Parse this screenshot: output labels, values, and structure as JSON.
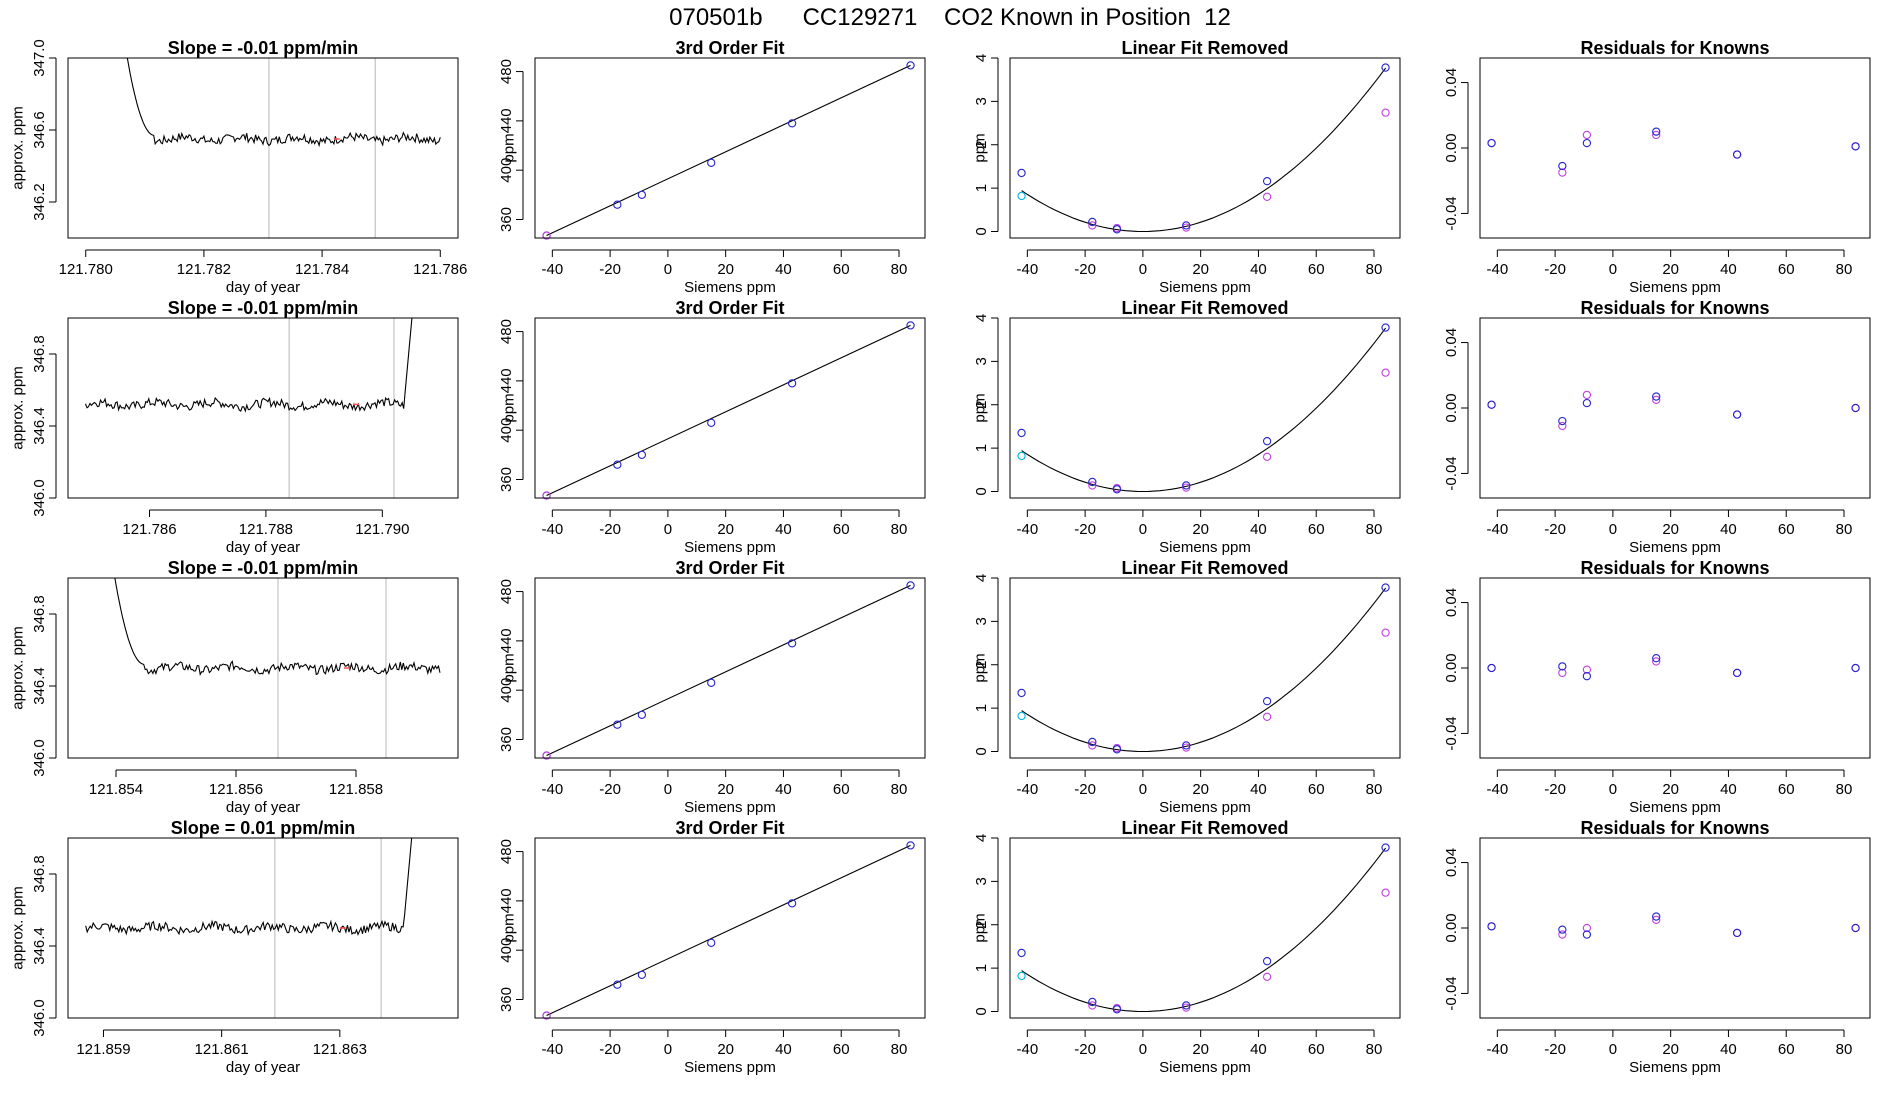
{
  "figure": {
    "title": "070501b      CC129271    CO2 Known in Position  12"
  },
  "colors": {
    "axis": "#000000",
    "trace": "#000000",
    "trace_highlight": "#ff4d4d",
    "vline": "#c8c8c8",
    "fit_line": "#000000",
    "point_blue": "#2222cc",
    "point_magenta": "#c040e0",
    "point_cyan": "#00b4e0"
  },
  "chart_data": [
    {
      "type": "line",
      "panel": "r1-trace",
      "title": "Slope =  -0.01  ppm/min",
      "xlabel": "day of year",
      "ylabel": "approx. ppm",
      "xlim": [
        121.7797,
        121.7863
      ],
      "ylim": [
        346.0,
        347.0
      ],
      "xticks": [
        "121.780",
        "121.782",
        "121.784",
        "121.786"
      ],
      "xtick_values": [
        121.78,
        121.782,
        121.784,
        121.786
      ],
      "yticks": [
        "346.2",
        "346.6",
        "347.0"
      ],
      "ytick_values": [
        346.2,
        346.6,
        347.0
      ],
      "vlines": [
        121.7831,
        121.7849
      ],
      "trace": {
        "start": 121.7805,
        "end": 121.786,
        "spike": "left",
        "level": 346.55
      }
    },
    {
      "type": "line",
      "panel": "r1-fit",
      "title": "3rd Order Fit",
      "xlabel": "Siemens ppm",
      "ylabel": "ppm",
      "xlim": [
        -46,
        89
      ],
      "ylim": [
        345,
        491
      ],
      "xticks": [
        "-40",
        "-20",
        "0",
        "20",
        "40",
        "60",
        "80"
      ],
      "xtick_values": [
        -40,
        -20,
        0,
        20,
        40,
        60,
        80
      ],
      "yticks": [
        "360",
        "400",
        "440",
        "480"
      ],
      "ytick_values": [
        360,
        400,
        440,
        480
      ],
      "points": [
        {
          "x": -42,
          "y": 347
        },
        {
          "x": -17.5,
          "y": 372
        },
        {
          "x": -9,
          "y": 380
        },
        {
          "x": 15,
          "y": 406
        },
        {
          "x": 43,
          "y": 438
        },
        {
          "x": 84,
          "y": 485
        }
      ]
    },
    {
      "type": "scatter",
      "panel": "r1-linear",
      "title": "Linear Fit Removed",
      "xlabel": "Siemens ppm",
      "ylabel": "ppm",
      "xlim": [
        -46,
        89
      ],
      "ylim": [
        -0.15,
        4.0
      ],
      "xticks": [
        "-40",
        "-20",
        "0",
        "20",
        "40",
        "60",
        "80"
      ],
      "xtick_values": [
        -40,
        -20,
        0,
        20,
        40,
        60,
        80
      ],
      "yticks": [
        "0",
        "1",
        "2",
        "3",
        "4"
      ],
      "ytick_values": [
        0,
        1,
        2,
        3,
        4
      ],
      "curve": {
        "a": 0.000534,
        "b": 0.0,
        "c": 0.0
      },
      "blue": [
        {
          "x": -42,
          "y": 1.35
        },
        {
          "x": -17.5,
          "y": 0.22
        },
        {
          "x": -9,
          "y": 0.05
        },
        {
          "x": 15,
          "y": 0.14
        },
        {
          "x": 43,
          "y": 1.16
        },
        {
          "x": 84,
          "y": 3.78
        }
      ],
      "magenta": [
        {
          "x": -17.5,
          "y": 0.14
        },
        {
          "x": -9,
          "y": 0.08
        },
        {
          "x": 15,
          "y": 0.09
        },
        {
          "x": 43,
          "y": 0.8
        },
        {
          "x": 84,
          "y": 2.74
        }
      ],
      "cyan": [
        {
          "x": -42,
          "y": 0.82
        }
      ]
    },
    {
      "type": "scatter",
      "panel": "r1-resid",
      "title": "Residuals for Knowns",
      "xlabel": "Siemens ppm",
      "ylabel": "",
      "xlim": [
        -46,
        89
      ],
      "ylim": [
        -0.055,
        0.055
      ],
      "xticks": [
        "-40",
        "-20",
        "0",
        "20",
        "40",
        "60",
        "80"
      ],
      "xtick_values": [
        -40,
        -20,
        0,
        20,
        40,
        60,
        80
      ],
      "yticks": [
        "-0.04",
        "0.00",
        "0.04"
      ],
      "ytick_values": [
        -0.04,
        0.0,
        0.04
      ],
      "blue": [
        {
          "x": -42,
          "y": 0.003
        },
        {
          "x": -17.5,
          "y": -0.011
        },
        {
          "x": -9,
          "y": 0.003
        },
        {
          "x": 15,
          "y": 0.01
        },
        {
          "x": 43,
          "y": -0.004
        },
        {
          "x": 84,
          "y": 0.001
        }
      ],
      "magenta": [
        {
          "x": -42,
          "y": 0.003
        },
        {
          "x": -17.5,
          "y": -0.015
        },
        {
          "x": -9,
          "y": 0.008
        },
        {
          "x": 15,
          "y": 0.008
        },
        {
          "x": 43,
          "y": -0.004
        },
        {
          "x": 84,
          "y": 0.001
        }
      ]
    },
    {
      "type": "line",
      "panel": "r2-trace",
      "title": "Slope =  -0.01  ppm/min",
      "xlabel": "day of year",
      "ylabel": "approx. ppm",
      "xlim": [
        121.7846,
        121.7913
      ],
      "ylim": [
        346.0,
        347.0
      ],
      "xticks": [
        "121.786",
        "121.788",
        "121.790"
      ],
      "xtick_values": [
        121.786,
        121.788,
        121.79
      ],
      "yticks": [
        "346.0",
        "346.4",
        "346.8"
      ],
      "ytick_values": [
        346.0,
        346.4,
        346.8
      ],
      "vlines": [
        121.7884,
        121.7902
      ],
      "trace": {
        "start": 121.7849,
        "end": 121.7906,
        "spike": "right",
        "level": 346.52
      }
    },
    {
      "type": "line",
      "panel": "r2-fit",
      "title": "3rd Order Fit",
      "xlabel": "Siemens ppm",
      "ylabel": "ppm",
      "xlim": [
        -46,
        89
      ],
      "ylim": [
        345,
        491
      ],
      "xticks": [
        "-40",
        "-20",
        "0",
        "20",
        "40",
        "60",
        "80"
      ],
      "xtick_values": [
        -40,
        -20,
        0,
        20,
        40,
        60,
        80
      ],
      "yticks": [
        "360",
        "400",
        "440",
        "480"
      ],
      "ytick_values": [
        360,
        400,
        440,
        480
      ],
      "points": [
        {
          "x": -42,
          "y": 347
        },
        {
          "x": -17.5,
          "y": 372
        },
        {
          "x": -9,
          "y": 380
        },
        {
          "x": 15,
          "y": 406
        },
        {
          "x": 43,
          "y": 438
        },
        {
          "x": 84,
          "y": 485
        }
      ]
    },
    {
      "type": "scatter",
      "panel": "r2-linear",
      "title": "Linear Fit Removed",
      "xlabel": "Siemens ppm",
      "ylabel": "ppm",
      "xlim": [
        -46,
        89
      ],
      "ylim": [
        -0.15,
        4.0
      ],
      "xticks": [
        "-40",
        "-20",
        "0",
        "20",
        "40",
        "60",
        "80"
      ],
      "xtick_values": [
        -40,
        -20,
        0,
        20,
        40,
        60,
        80
      ],
      "yticks": [
        "0",
        "1",
        "2",
        "3",
        "4"
      ],
      "ytick_values": [
        0,
        1,
        2,
        3,
        4
      ],
      "curve": {
        "a": 0.000534,
        "b": 0.0,
        "c": 0.0
      },
      "blue": [
        {
          "x": -42,
          "y": 1.35
        },
        {
          "x": -17.5,
          "y": 0.22
        },
        {
          "x": -9,
          "y": 0.05
        },
        {
          "x": 15,
          "y": 0.14
        },
        {
          "x": 43,
          "y": 1.16
        },
        {
          "x": 84,
          "y": 3.78
        }
      ],
      "magenta": [
        {
          "x": -17.5,
          "y": 0.14
        },
        {
          "x": -9,
          "y": 0.08
        },
        {
          "x": 15,
          "y": 0.09
        },
        {
          "x": 43,
          "y": 0.8
        },
        {
          "x": 84,
          "y": 2.74
        }
      ],
      "cyan": [
        {
          "x": -42,
          "y": 0.82
        }
      ]
    },
    {
      "type": "scatter",
      "panel": "r2-resid",
      "title": "Residuals for Knowns",
      "xlabel": "Siemens ppm",
      "ylabel": "",
      "xlim": [
        -46,
        89
      ],
      "ylim": [
        -0.055,
        0.055
      ],
      "xticks": [
        "-40",
        "-20",
        "0",
        "20",
        "40",
        "60",
        "80"
      ],
      "xtick_values": [
        -40,
        -20,
        0,
        20,
        40,
        60,
        80
      ],
      "yticks": [
        "-0.04",
        "0.00",
        "0.04"
      ],
      "ytick_values": [
        -0.04,
        0.0,
        0.04
      ],
      "blue": [
        {
          "x": -42,
          "y": 0.002
        },
        {
          "x": -17.5,
          "y": -0.008
        },
        {
          "x": -9,
          "y": 0.003
        },
        {
          "x": 15,
          "y": 0.007
        },
        {
          "x": 43,
          "y": -0.004
        },
        {
          "x": 84,
          "y": 0.0
        }
      ],
      "magenta": [
        {
          "x": -42,
          "y": 0.002
        },
        {
          "x": -17.5,
          "y": -0.011
        },
        {
          "x": -9,
          "y": 0.008
        },
        {
          "x": 15,
          "y": 0.005
        },
        {
          "x": 43,
          "y": -0.004
        },
        {
          "x": 84,
          "y": 0.0
        }
      ]
    },
    {
      "type": "line",
      "panel": "r3-trace",
      "title": "Slope =  -0.01  ppm/min",
      "xlabel": "day of year",
      "ylabel": "approx. ppm",
      "xlim": [
        121.8532,
        121.8597
      ],
      "ylim": [
        346.0,
        347.0
      ],
      "xticks": [
        "121.854",
        "121.856",
        "121.858"
      ],
      "xtick_values": [
        121.854,
        121.856,
        121.858
      ],
      "yticks": [
        "346.0",
        "346.4",
        "346.8"
      ],
      "ytick_values": [
        346.0,
        346.4,
        346.8
      ],
      "vlines": [
        121.8567,
        121.8585
      ],
      "trace": {
        "start": 121.8538,
        "end": 121.8594,
        "spike": "left",
        "level": 346.5
      }
    },
    {
      "type": "line",
      "panel": "r3-fit",
      "title": "3rd Order Fit",
      "xlabel": "Siemens ppm",
      "ylabel": "ppm",
      "xlim": [
        -46,
        89
      ],
      "ylim": [
        345,
        491
      ],
      "xticks": [
        "-40",
        "-20",
        "0",
        "20",
        "40",
        "60",
        "80"
      ],
      "xtick_values": [
        -40,
        -20,
        0,
        20,
        40,
        60,
        80
      ],
      "yticks": [
        "360",
        "400",
        "440",
        "480"
      ],
      "ytick_values": [
        360,
        400,
        440,
        480
      ],
      "points": [
        {
          "x": -42,
          "y": 347
        },
        {
          "x": -17.5,
          "y": 372
        },
        {
          "x": -9,
          "y": 380
        },
        {
          "x": 15,
          "y": 406
        },
        {
          "x": 43,
          "y": 438
        },
        {
          "x": 84,
          "y": 485
        }
      ]
    },
    {
      "type": "scatter",
      "panel": "r3-linear",
      "title": "Linear Fit Removed",
      "xlabel": "Siemens ppm",
      "ylabel": "ppm",
      "xlim": [
        -46,
        89
      ],
      "ylim": [
        -0.15,
        4.0
      ],
      "xticks": [
        "-40",
        "-20",
        "0",
        "20",
        "40",
        "60",
        "80"
      ],
      "xtick_values": [
        -40,
        -20,
        0,
        20,
        40,
        60,
        80
      ],
      "yticks": [
        "0",
        "1",
        "2",
        "3",
        "4"
      ],
      "ytick_values": [
        0,
        1,
        2,
        3,
        4
      ],
      "curve": {
        "a": 0.000534,
        "b": 0.0,
        "c": 0.0
      },
      "blue": [
        {
          "x": -42,
          "y": 1.35
        },
        {
          "x": -17.5,
          "y": 0.22
        },
        {
          "x": -9,
          "y": 0.05
        },
        {
          "x": 15,
          "y": 0.14
        },
        {
          "x": 43,
          "y": 1.16
        },
        {
          "x": 84,
          "y": 3.78
        }
      ],
      "magenta": [
        {
          "x": -17.5,
          "y": 0.14
        },
        {
          "x": -9,
          "y": 0.08
        },
        {
          "x": 15,
          "y": 0.09
        },
        {
          "x": 43,
          "y": 0.8
        },
        {
          "x": 84,
          "y": 2.74
        }
      ],
      "cyan": [
        {
          "x": -42,
          "y": 0.82
        }
      ]
    },
    {
      "type": "scatter",
      "panel": "r3-resid",
      "title": "Residuals for Knowns",
      "xlabel": "Siemens ppm",
      "ylabel": "",
      "xlim": [
        -46,
        89
      ],
      "ylim": [
        -0.055,
        0.055
      ],
      "xticks": [
        "-40",
        "-20",
        "0",
        "20",
        "40",
        "60",
        "80"
      ],
      "xtick_values": [
        -40,
        -20,
        0,
        20,
        40,
        60,
        80
      ],
      "yticks": [
        "-0.04",
        "0.00",
        "0.04"
      ],
      "ytick_values": [
        -0.04,
        0.0,
        0.04
      ],
      "blue": [
        {
          "x": -42,
          "y": 0.0
        },
        {
          "x": -17.5,
          "y": 0.001
        },
        {
          "x": -9,
          "y": -0.005
        },
        {
          "x": 15,
          "y": 0.006
        },
        {
          "x": 43,
          "y": -0.003
        },
        {
          "x": 84,
          "y": 0.0
        }
      ],
      "magenta": [
        {
          "x": -42,
          "y": 0.0
        },
        {
          "x": -17.5,
          "y": -0.003
        },
        {
          "x": -9,
          "y": -0.001
        },
        {
          "x": 15,
          "y": 0.004
        },
        {
          "x": 43,
          "y": -0.003
        },
        {
          "x": 84,
          "y": 0.0
        }
      ]
    },
    {
      "type": "line",
      "panel": "r4-trace",
      "title": "Slope =  0.01  ppm/min",
      "xlabel": "day of year",
      "ylabel": "approx. ppm",
      "xlim": [
        121.8584,
        121.865
      ],
      "ylim": [
        346.0,
        347.0
      ],
      "xticks": [
        "121.859",
        "121.861",
        "121.863"
      ],
      "xtick_values": [
        121.859,
        121.861,
        121.863
      ],
      "yticks": [
        "346.0",
        "346.4",
        "346.8"
      ],
      "ytick_values": [
        346.0,
        346.4,
        346.8
      ],
      "vlines": [
        121.8619,
        121.8637
      ],
      "trace": {
        "start": 121.8587,
        "end": 121.8643,
        "spike": "right",
        "level": 346.5
      }
    },
    {
      "type": "line",
      "panel": "r4-fit",
      "title": "3rd Order Fit",
      "xlabel": "Siemens ppm",
      "ylabel": "ppm",
      "xlim": [
        -46,
        89
      ],
      "ylim": [
        345,
        491
      ],
      "xticks": [
        "-40",
        "-20",
        "0",
        "20",
        "40",
        "60",
        "80"
      ],
      "xtick_values": [
        -40,
        -20,
        0,
        20,
        40,
        60,
        80
      ],
      "yticks": [
        "360",
        "400",
        "440",
        "480"
      ],
      "ytick_values": [
        360,
        400,
        440,
        480
      ],
      "points": [
        {
          "x": -42,
          "y": 347
        },
        {
          "x": -17.5,
          "y": 372
        },
        {
          "x": -9,
          "y": 380
        },
        {
          "x": 15,
          "y": 406
        },
        {
          "x": 43,
          "y": 438
        },
        {
          "x": 84,
          "y": 485
        }
      ]
    },
    {
      "type": "scatter",
      "panel": "r4-linear",
      "title": "Linear Fit Removed",
      "xlabel": "Siemens ppm",
      "ylabel": "ppm",
      "xlim": [
        -46,
        89
      ],
      "ylim": [
        -0.15,
        4.0
      ],
      "xticks": [
        "-40",
        "-20",
        "0",
        "20",
        "40",
        "60",
        "80"
      ],
      "xtick_values": [
        -40,
        -20,
        0,
        20,
        40,
        60,
        80
      ],
      "yticks": [
        "0",
        "1",
        "2",
        "3",
        "4"
      ],
      "ytick_values": [
        0,
        1,
        2,
        3,
        4
      ],
      "curve": {
        "a": 0.000534,
        "b": 0.0,
        "c": 0.0
      },
      "blue": [
        {
          "x": -42,
          "y": 1.35
        },
        {
          "x": -17.5,
          "y": 0.22
        },
        {
          "x": -9,
          "y": 0.05
        },
        {
          "x": 15,
          "y": 0.14
        },
        {
          "x": 43,
          "y": 1.16
        },
        {
          "x": 84,
          "y": 3.78
        }
      ],
      "magenta": [
        {
          "x": -17.5,
          "y": 0.14
        },
        {
          "x": -9,
          "y": 0.08
        },
        {
          "x": 15,
          "y": 0.09
        },
        {
          "x": 43,
          "y": 0.8
        },
        {
          "x": 84,
          "y": 2.74
        }
      ],
      "cyan": [
        {
          "x": -42,
          "y": 0.82
        }
      ]
    },
    {
      "type": "scatter",
      "panel": "r4-resid",
      "title": "Residuals for Knowns",
      "xlabel": "Siemens ppm",
      "ylabel": "",
      "xlim": [
        -46,
        89
      ],
      "ylim": [
        -0.055,
        0.055
      ],
      "xticks": [
        "-40",
        "-20",
        "0",
        "20",
        "40",
        "60",
        "80"
      ],
      "xtick_values": [
        -40,
        -20,
        0,
        20,
        40,
        60,
        80
      ],
      "yticks": [
        "-0.04",
        "0.00",
        "0.04"
      ],
      "ytick_values": [
        -0.04,
        0.0,
        0.04
      ],
      "blue": [
        {
          "x": -42,
          "y": 0.001
        },
        {
          "x": -17.5,
          "y": -0.001
        },
        {
          "x": -9,
          "y": -0.004
        },
        {
          "x": 15,
          "y": 0.007
        },
        {
          "x": 43,
          "y": -0.003
        },
        {
          "x": 84,
          "y": 0.0
        }
      ],
      "magenta": [
        {
          "x": -42,
          "y": 0.001
        },
        {
          "x": -17.5,
          "y": -0.004
        },
        {
          "x": -9,
          "y": 0.0
        },
        {
          "x": 15,
          "y": 0.005
        },
        {
          "x": 43,
          "y": -0.003
        },
        {
          "x": 84,
          "y": 0.0
        }
      ]
    }
  ]
}
